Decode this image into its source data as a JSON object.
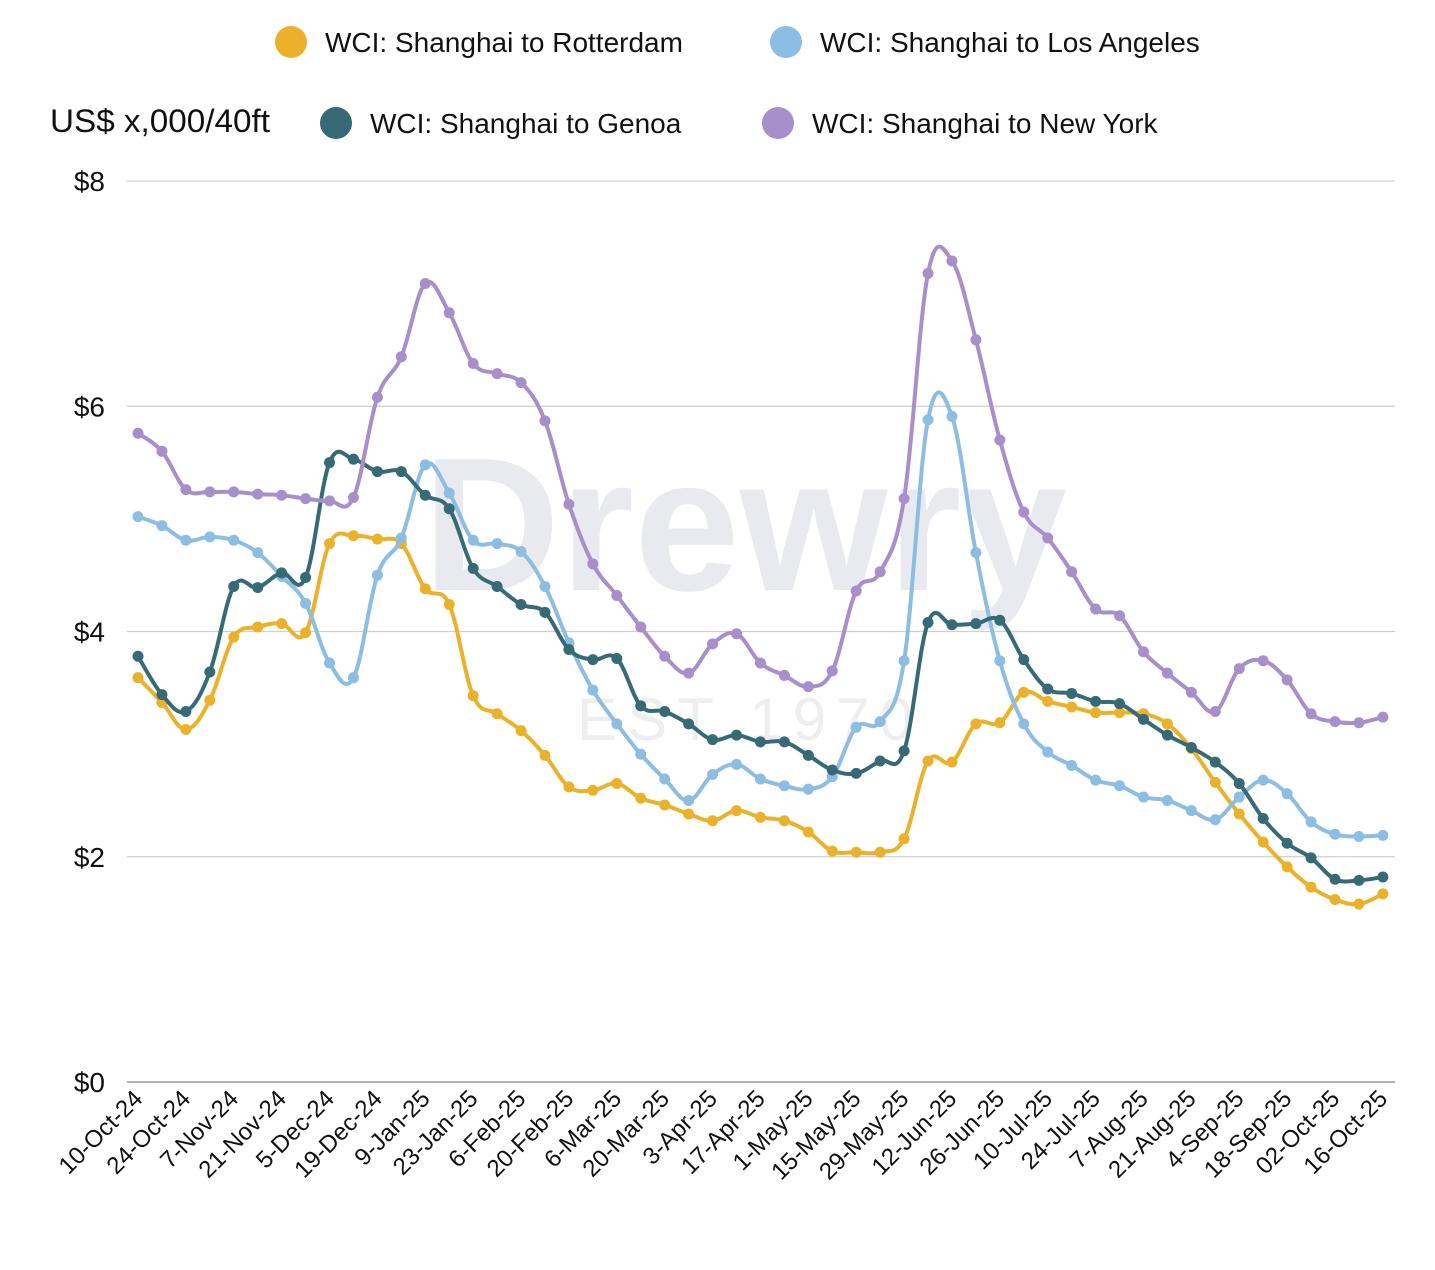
{
  "chart_data": {
    "type": "line",
    "title": "",
    "ylabel": "US$ x,000/40ft",
    "xlabel": "",
    "ylim": [
      0,
      8
    ],
    "yticks": [
      0,
      2,
      4,
      6,
      8
    ],
    "ytick_labels": [
      "$0",
      "$2",
      "$4",
      "$6",
      "$8"
    ],
    "grid": true,
    "legend_position": "top",
    "x_tick_labels": [
      "10-Oct-24",
      "24-Oct-24",
      "7-Nov-24",
      "21-Nov-24",
      "5-Dec-24",
      "19-Dec-24",
      "9-Jan-25",
      "23-Jan-25",
      "6-Feb-25",
      "20-Feb-25",
      "6-Mar-25",
      "20-Mar-25",
      "3-Apr-25",
      "17-Apr-25",
      "1-May-25",
      "15-May-25",
      "29-May-25",
      "12-Jun-25",
      "26-Jun-25",
      "10-Jul-25",
      "24-Jul-25",
      "7-Aug-25",
      "21-Aug-25",
      "4-Sep-25",
      "18-Sep-25",
      "02-Oct-25",
      "16-Oct-25"
    ],
    "x_tick_every": 2,
    "series": [
      {
        "name": "WCI: Shanghai to Rotterdam",
        "color": "#EBB12B",
        "values": [
          3.59,
          3.37,
          3.13,
          3.39,
          3.95,
          4.04,
          4.07,
          3.99,
          4.78,
          4.85,
          4.82,
          4.78,
          4.38,
          4.24,
          3.43,
          3.27,
          3.12,
          2.9,
          2.62,
          2.59,
          2.65,
          2.52,
          2.46,
          2.38,
          2.32,
          2.41,
          2.35,
          2.32,
          2.22,
          2.05,
          2.04,
          2.04,
          2.16,
          2.85,
          2.84,
          3.18,
          3.19,
          3.46,
          3.38,
          3.33,
          3.28,
          3.28,
          3.27,
          3.18,
          2.96,
          2.66,
          2.38,
          2.13,
          1.91,
          1.73,
          1.62,
          1.58,
          1.67
        ]
      },
      {
        "name": "WCI: Shanghai to Los Angeles",
        "color": "#8CBDE2",
        "values": [
          5.02,
          4.94,
          4.81,
          4.84,
          4.81,
          4.7,
          4.49,
          4.25,
          3.72,
          3.59,
          4.5,
          4.83,
          5.48,
          5.23,
          4.81,
          4.78,
          4.71,
          4.4,
          3.9,
          3.48,
          3.18,
          2.91,
          2.69,
          2.5,
          2.73,
          2.82,
          2.69,
          2.63,
          2.6,
          2.71,
          3.15,
          3.2,
          3.74,
          5.88,
          5.91,
          4.7,
          3.74,
          3.18,
          2.93,
          2.81,
          2.68,
          2.63,
          2.53,
          2.5,
          2.41,
          2.33,
          2.53,
          2.68,
          2.56,
          2.31,
          2.2,
          2.18,
          2.19
        ]
      },
      {
        "name": "WCI: Shanghai to Genoa",
        "color": "#366A76",
        "values": [
          3.78,
          3.44,
          3.29,
          3.64,
          4.4,
          4.39,
          4.52,
          4.48,
          5.5,
          5.53,
          5.42,
          5.42,
          5.21,
          5.09,
          4.56,
          4.4,
          4.24,
          4.17,
          3.84,
          3.75,
          3.76,
          3.34,
          3.29,
          3.18,
          3.04,
          3.08,
          3.02,
          3.02,
          2.9,
          2.77,
          2.74,
          2.85,
          2.94,
          4.08,
          4.06,
          4.07,
          4.1,
          3.75,
          3.49,
          3.45,
          3.38,
          3.36,
          3.22,
          3.08,
          2.97,
          2.84,
          2.65,
          2.34,
          2.12,
          1.99,
          1.8,
          1.79,
          1.82
        ]
      },
      {
        "name": "WCI: Shanghai to New York",
        "color": "#A78FCB",
        "values": [
          5.76,
          5.6,
          5.26,
          5.24,
          5.24,
          5.22,
          5.21,
          5.18,
          5.16,
          5.19,
          6.08,
          6.44,
          7.09,
          6.83,
          6.38,
          6.29,
          6.21,
          5.87,
          5.13,
          4.6,
          4.32,
          4.04,
          3.78,
          3.63,
          3.89,
          3.98,
          3.72,
          3.61,
          3.51,
          3.65,
          4.36,
          4.53,
          5.18,
          7.18,
          7.29,
          6.59,
          5.7,
          5.06,
          4.83,
          4.53,
          4.2,
          4.14,
          3.82,
          3.63,
          3.46,
          3.29,
          3.67,
          3.74,
          3.57,
          3.27,
          3.2,
          3.19,
          3.24
        ]
      }
    ]
  },
  "watermark": {
    "brand": "Drewry",
    "est": "EST 1970"
  }
}
